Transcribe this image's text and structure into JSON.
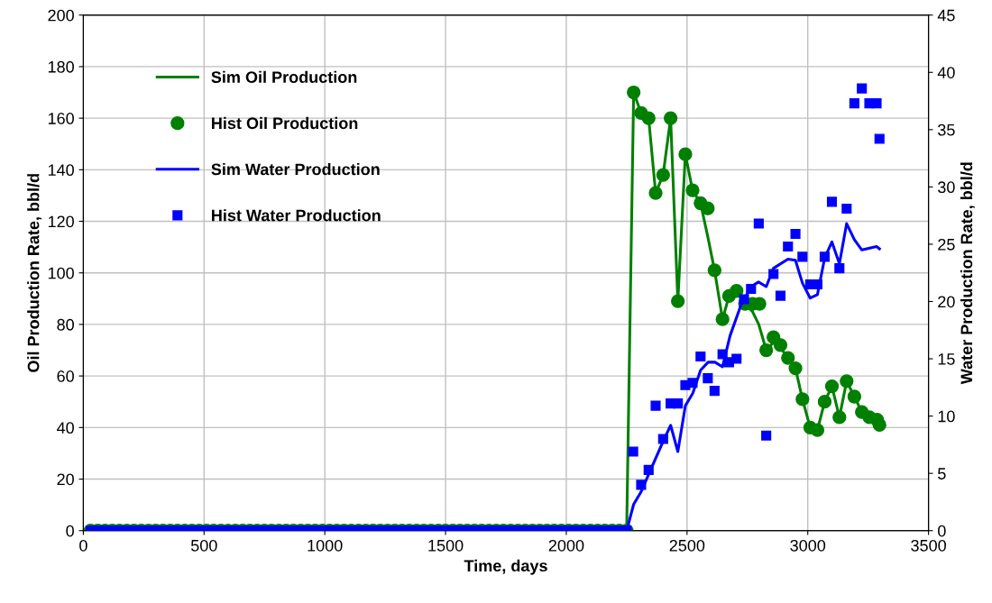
{
  "chart_data": {
    "type": "line",
    "xlabel": "Time, days",
    "ylabel": "Oil Production Rate, bbl/d",
    "y2label": "Water Production Rate, bbl/d",
    "xlim": [
      0,
      3500
    ],
    "xticks": [
      0,
      500,
      1000,
      1500,
      2000,
      2500,
      3000,
      3500
    ],
    "ylim": [
      0,
      200
    ],
    "yticks": [
      0,
      20,
      40,
      60,
      80,
      100,
      120,
      140,
      160,
      180,
      200
    ],
    "y2lim": [
      0,
      45
    ],
    "y2ticks": [
      0,
      5,
      10,
      15,
      20,
      25,
      30,
      35,
      40,
      45
    ],
    "grid": true,
    "legend": "top left",
    "series": [
      {
        "name": "Sim Oil Production",
        "marker": "none",
        "line_style": "solid",
        "color": "#008000",
        "x": [
          30,
          2250,
          2279,
          2310,
          2341,
          2370,
          2401,
          2432,
          2462,
          2493,
          2523,
          2556,
          2586,
          2614,
          2647,
          2674,
          2705,
          2740,
          2771,
          2797,
          2828,
          2858,
          2887,
          2918,
          2949,
          2978,
          3010,
          3040,
          3070,
          3100,
          3131,
          3161,
          3193,
          3224,
          3255,
          3287,
          3297
        ],
        "values": [
          0,
          0,
          170,
          162,
          160,
          131,
          138,
          160,
          89,
          146,
          132,
          127,
          114,
          101,
          82,
          91,
          93,
          88,
          85,
          80,
          70,
          73,
          71,
          67,
          63,
          51,
          40,
          39,
          50,
          56,
          44,
          58,
          52,
          46,
          44,
          43,
          41
        ]
      },
      {
        "name": "Hist Oil Production",
        "type": "scatter",
        "marker": "circle",
        "color": "#008000",
        "x": [
          30,
          60,
          90,
          120,
          150,
          180,
          210,
          240,
          270,
          300,
          330,
          360,
          390,
          420,
          450,
          480,
          510,
          540,
          570,
          600,
          630,
          660,
          690,
          720,
          750,
          780,
          810,
          840,
          870,
          900,
          930,
          960,
          990,
          1020,
          1050,
          1080,
          1110,
          1140,
          1170,
          1200,
          1230,
          1260,
          1290,
          1320,
          1350,
          1380,
          1410,
          1440,
          1470,
          1500,
          1530,
          1560,
          1590,
          1620,
          1650,
          1680,
          1710,
          1740,
          1770,
          1800,
          1830,
          1860,
          1890,
          1920,
          1950,
          1980,
          2010,
          2040,
          2070,
          2100,
          2130,
          2160,
          2190,
          2220,
          2250,
          2279,
          2310,
          2341,
          2370,
          2401,
          2432,
          2462,
          2493,
          2523,
          2556,
          2586,
          2614,
          2647,
          2674,
          2705,
          2740,
          2771,
          2800,
          2828,
          2858,
          2887,
          2918,
          2949,
          2978,
          3010,
          3040,
          3070,
          3100,
          3131,
          3161,
          3193,
          3224,
          3255,
          3287,
          3297
        ],
        "values": [
          0,
          0,
          0,
          0,
          0,
          0,
          0,
          0,
          0,
          0,
          0,
          0,
          0,
          0,
          0,
          0,
          0,
          0,
          0,
          0,
          0,
          0,
          0,
          0,
          0,
          0,
          0,
          0,
          0,
          0,
          0,
          0,
          0,
          0,
          0,
          0,
          0,
          0,
          0,
          0,
          0,
          0,
          0,
          0,
          0,
          0,
          0,
          0,
          0,
          0,
          0,
          0,
          0,
          0,
          0,
          0,
          0,
          0,
          0,
          0,
          0,
          0,
          0,
          0,
          0,
          0,
          0,
          0,
          0,
          0,
          0,
          0,
          0,
          0,
          0,
          170,
          162,
          160,
          131,
          138,
          160,
          89,
          146,
          132,
          127,
          125,
          101,
          82,
          91,
          93,
          88,
          88,
          88,
          70,
          75,
          72,
          67,
          63,
          51,
          40,
          39,
          50,
          56,
          44,
          58,
          52,
          46,
          44,
          43,
          41
        ]
      },
      {
        "name": "Sim Water Production",
        "axis": "y2",
        "marker": "none",
        "line_style": "solid",
        "color": "#0000ff",
        "x": [
          30,
          2250,
          2279,
          2310,
          2347,
          2397,
          2432,
          2462,
          2493,
          2524,
          2556,
          2587,
          2616,
          2647,
          2678,
          2722,
          2765,
          2796,
          2828,
          2858,
          2918,
          2949,
          2978,
          3010,
          3040,
          3070,
          3100,
          3131,
          3161,
          3193,
          3224,
          3285,
          3297
        ],
        "values": [
          0,
          0,
          2.3,
          3.4,
          5.2,
          7.6,
          9.2,
          6.9,
          10.9,
          12.0,
          14.0,
          14.7,
          14.7,
          14.3,
          17.0,
          19.6,
          21.3,
          21.7,
          21.3,
          22.9,
          23.7,
          23.6,
          21.6,
          20.3,
          20.6,
          23.8,
          25.2,
          23.3,
          26.8,
          25.4,
          24.5,
          24.8,
          24.6
        ]
      },
      {
        "name": "Hist Water Production",
        "type": "scatter",
        "axis": "y2",
        "marker": "square",
        "color": "#0000ff",
        "x": [
          30,
          60,
          90,
          120,
          150,
          180,
          210,
          240,
          270,
          300,
          330,
          360,
          390,
          420,
          450,
          480,
          510,
          540,
          570,
          600,
          630,
          660,
          690,
          720,
          750,
          780,
          810,
          840,
          870,
          900,
          930,
          960,
          990,
          1020,
          1050,
          1080,
          1110,
          1140,
          1170,
          1200,
          1230,
          1260,
          1290,
          1320,
          1350,
          1380,
          1410,
          1440,
          1470,
          1500,
          1530,
          1560,
          1590,
          1620,
          1650,
          1680,
          1710,
          1740,
          1770,
          1800,
          1830,
          1860,
          1890,
          1920,
          1950,
          1980,
          2010,
          2040,
          2070,
          2100,
          2130,
          2160,
          2190,
          2220,
          2250,
          2277,
          2310,
          2341,
          2370,
          2401,
          2432,
          2462,
          2493,
          2523,
          2556,
          2586,
          2614,
          2647,
          2674,
          2705,
          2736,
          2765,
          2797,
          2828,
          2858,
          2887,
          2918,
          2949,
          2978,
          3010,
          3040,
          3070,
          3100,
          3131,
          3161,
          3193,
          3224,
          3255,
          3285,
          3297
        ],
        "values": [
          0,
          0,
          0,
          0,
          0,
          0,
          0,
          0,
          0,
          0,
          0,
          0,
          0,
          0,
          0,
          0,
          0,
          0,
          0,
          0,
          0,
          0,
          0,
          0,
          0,
          0,
          0,
          0,
          0,
          0,
          0,
          0,
          0,
          0,
          0,
          0,
          0,
          0,
          0,
          0,
          0,
          0,
          0,
          0,
          0,
          0,
          0,
          0,
          0,
          0,
          0,
          0,
          0,
          0,
          0,
          0,
          0,
          0,
          0,
          0,
          0,
          0,
          0,
          0,
          0,
          0,
          0,
          0,
          0,
          0,
          0,
          0,
          0,
          0,
          0,
          6.9,
          4.0,
          5.3,
          10.9,
          8.0,
          11.1,
          11.1,
          12.7,
          12.9,
          15.2,
          13.3,
          12.2,
          15.4,
          14.7,
          15.0,
          20.2,
          21.1,
          26.8,
          8.3,
          22.4,
          20.5,
          24.8,
          25.9,
          23.9,
          21.5,
          21.5,
          23.9,
          28.7,
          22.9,
          28.1,
          37.3,
          38.6,
          37.3,
          37.3,
          34.2
        ]
      }
    ]
  }
}
